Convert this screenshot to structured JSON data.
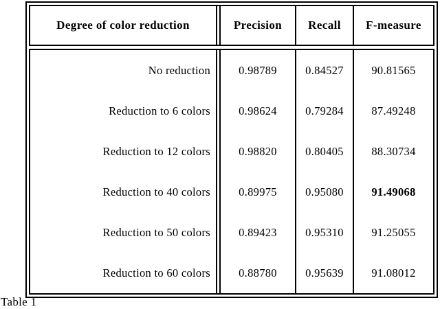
{
  "caption": "Table 1",
  "table": {
    "headers": {
      "degree": "Degree of color reduction",
      "precision": "Precision",
      "recall": "Recall",
      "f_measure": "F-measure"
    },
    "rows": [
      {
        "label": "No reduction",
        "precision": "0.98789",
        "recall": "0.84527",
        "f_measure": "90.81565",
        "f_bold": false
      },
      {
        "label": "Reduction to 6 colors",
        "precision": "0.98624",
        "recall": "0.79284",
        "f_measure": "87.49248",
        "f_bold": false
      },
      {
        "label": "Reduction to 12 colors",
        "precision": "0.98820",
        "recall": "0.80405",
        "f_measure": "88.30734",
        "f_bold": false
      },
      {
        "label": "Reduction to 40 colors",
        "precision": "0.89975",
        "recall": "0.95080",
        "f_measure": "91.49068",
        "f_bold": true
      },
      {
        "label": "Reduction to 50 colors",
        "precision": "0.89423",
        "recall": "0.95310",
        "f_measure": "91.25055",
        "f_bold": false
      },
      {
        "label": "Reduction to 60 colors",
        "precision": "0.88780",
        "recall": "0.95639",
        "f_measure": "91.08012",
        "f_bold": false
      }
    ],
    "line_color": "#000000",
    "background_color": "#ffffff"
  }
}
